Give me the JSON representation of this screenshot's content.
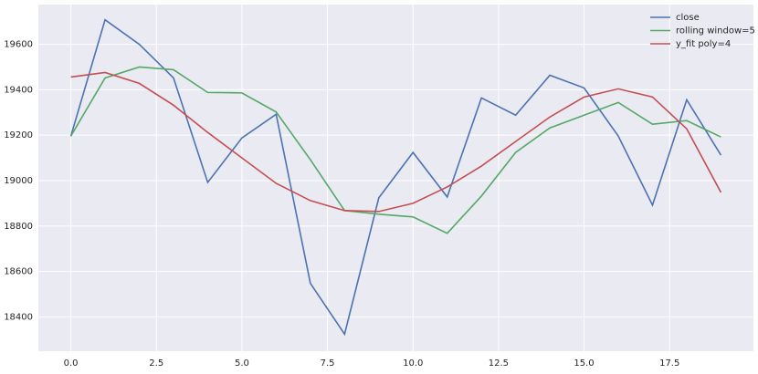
{
  "chart_data": {
    "type": "line",
    "x": [
      0,
      1,
      2,
      3,
      4,
      5,
      6,
      7,
      8,
      9,
      10,
      11,
      12,
      13,
      14,
      15,
      16,
      17,
      18,
      19
    ],
    "series": [
      {
        "name": "close",
        "color": "#4c72b0",
        "values": [
          19196,
          19708,
          19600,
          19452,
          18992,
          19188,
          19292,
          18548,
          18324,
          18924,
          19124,
          18928,
          19364,
          19288,
          19464,
          19408,
          19196,
          18892,
          19356,
          19112
        ]
      },
      {
        "name": "rolling window=5",
        "color": "#55a868",
        "values": [
          19196,
          19452,
          19500,
          19488,
          19388,
          19386,
          19302,
          19092,
          18868,
          18852,
          18840,
          18768,
          18932,
          19124,
          19232,
          19288,
          19344,
          19248,
          19264,
          19192
        ]
      },
      {
        "name": "y_fit poly=4",
        "color": "#c44e52",
        "values": [
          19456,
          19476,
          19428,
          19332,
          19212,
          19100,
          18988,
          18912,
          18868,
          18864,
          18900,
          18972,
          19064,
          19172,
          19280,
          19368,
          19404,
          19368,
          19228,
          18948
        ]
      }
    ],
    "xlim": [
      -0.95,
      19.95
    ],
    "xticks": [
      {
        "value": 0,
        "label": "0.0"
      },
      {
        "value": 2.5,
        "label": "2.5"
      },
      {
        "value": 5,
        "label": "5.0"
      },
      {
        "value": 7.5,
        "label": "7.5"
      },
      {
        "value": 10,
        "label": "10.0"
      },
      {
        "value": 12.5,
        "label": "12.5"
      },
      {
        "value": 15,
        "label": "15.0"
      },
      {
        "value": 17.5,
        "label": "17.5"
      }
    ],
    "ylim": [
      18249,
      19775
    ],
    "yticks": [
      18400,
      18600,
      18800,
      19000,
      19200,
      19400,
      19600
    ],
    "grid": true,
    "legend": "upper right"
  }
}
